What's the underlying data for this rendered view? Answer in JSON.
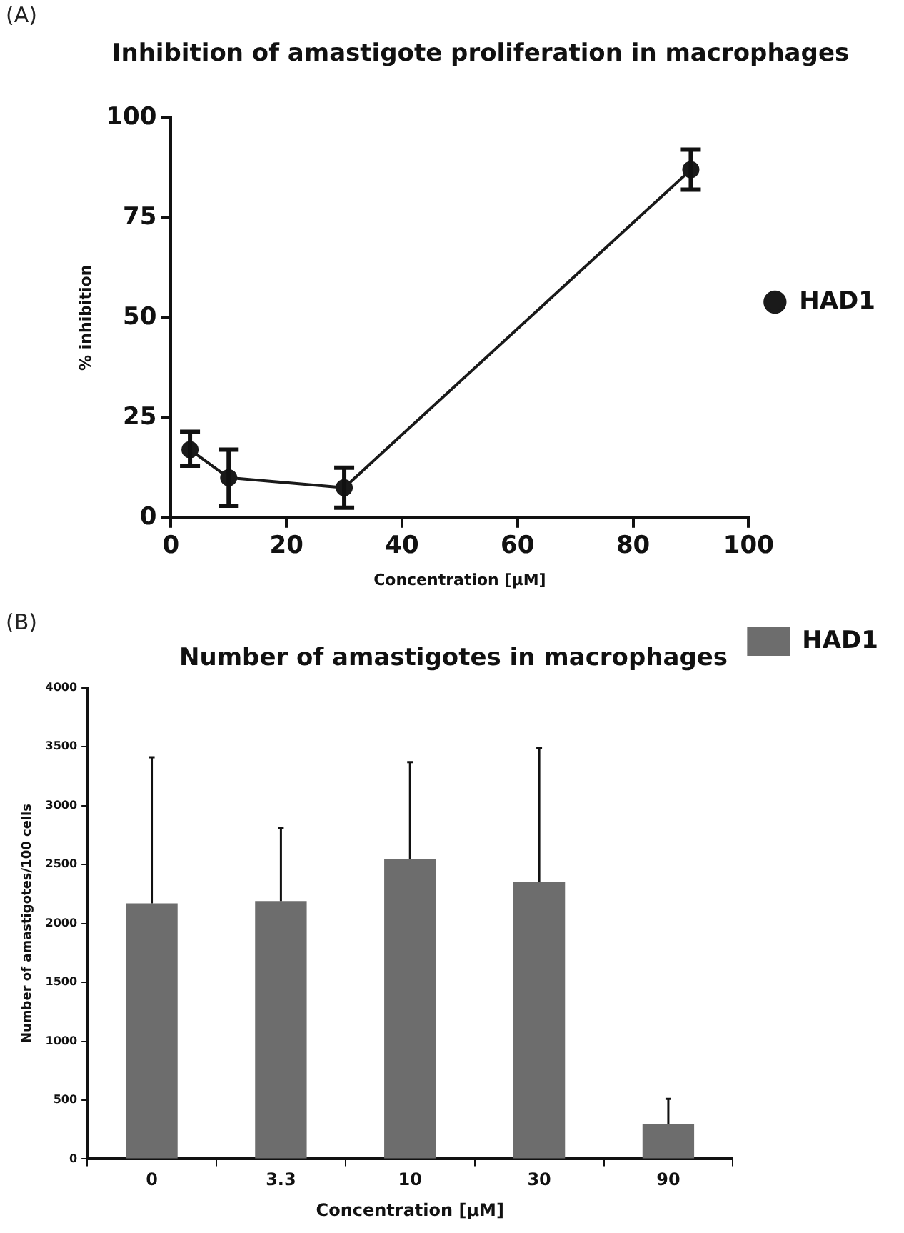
{
  "chart_data": [
    {
      "type": "line",
      "title": "Inhibition of amastigote proliferation in macrophages",
      "xlabel": "Concentration [µM]",
      "ylabel": "% inhibition",
      "annotations": [
        "(A)"
      ],
      "x": [
        3.3,
        10,
        30,
        90
      ],
      "series": [
        {
          "name": "HAD1",
          "color": "#1a1a1a",
          "values": [
            17,
            10,
            7.5,
            87
          ],
          "errors": [
            [
              13,
              21.5
            ],
            [
              3,
              17
            ],
            [
              2.5,
              12.5
            ],
            [
              82,
              92
            ]
          ]
        }
      ],
      "xlim": [
        0,
        100
      ],
      "xticks": [
        0,
        20,
        40,
        60,
        80,
        100
      ],
      "ylim": [
        0,
        100
      ],
      "yticks": [
        0,
        25,
        50,
        75,
        100
      ],
      "grid": false,
      "legend": "right",
      "marker": "circle",
      "line_style": "solid"
    },
    {
      "type": "bar",
      "title": "Number of amastigotes in macrophages",
      "xlabel": "Concentration [µM]",
      "ylabel": "Number of amastigotes/100 cells",
      "annotations": [
        "(B)"
      ],
      "categories": [
        "0",
        "3.3",
        "10",
        "30",
        "90"
      ],
      "series": [
        {
          "name": "HAD1",
          "color": "#6d6d6d",
          "values": [
            2170,
            2190,
            2550,
            2350,
            300
          ],
          "errors": [
            [
              2170,
              3410
            ],
            [
              2190,
              2810
            ],
            [
              2550,
              3370
            ],
            [
              2350,
              3490
            ],
            [
              300,
              510
            ]
          ]
        }
      ],
      "ylim": [
        0,
        4000
      ],
      "yticks": [
        0,
        500,
        1000,
        1500,
        2000,
        2500,
        3000,
        3500,
        4000
      ],
      "grid": false,
      "legend": "top right"
    }
  ]
}
